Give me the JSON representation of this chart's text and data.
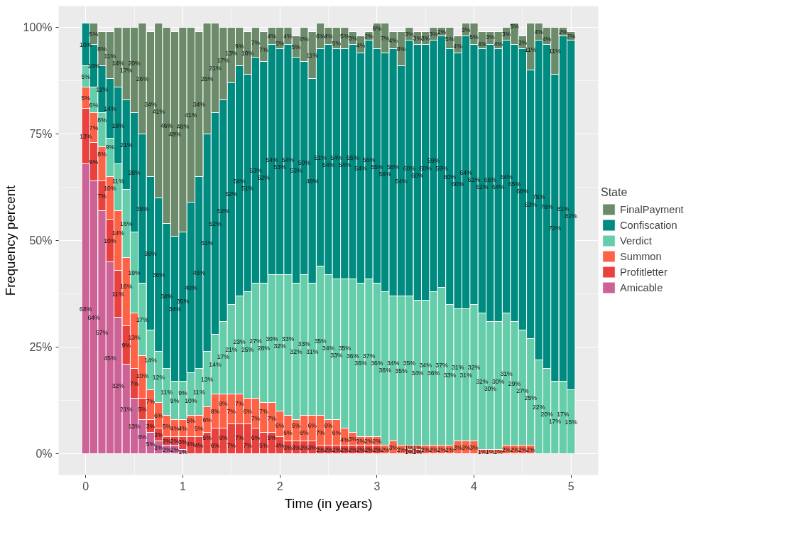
{
  "chart_data": {
    "type": "bar",
    "stacked": true,
    "xlabel": "Time (in years)",
    "ylabel": "Frequency percent",
    "legend_title": "State",
    "legend": "right",
    "grid": true,
    "xlim": [
      -0.28,
      5.28
    ],
    "ylim": [
      -5,
      105
    ],
    "xticks": [
      0,
      1,
      2,
      3,
      4,
      5
    ],
    "yticks": [
      {
        "value": 0,
        "label": "0%"
      },
      {
        "value": 25,
        "label": "25%"
      },
      {
        "value": 50,
        "label": "50%"
      },
      {
        "value": 75,
        "label": "75%"
      },
      {
        "value": 100,
        "label": "100%"
      }
    ],
    "x": [
      0,
      0.083,
      0.167,
      0.25,
      0.333,
      0.417,
      0.5,
      0.583,
      0.667,
      0.75,
      0.833,
      0.917,
      1,
      1.083,
      1.167,
      1.25,
      1.333,
      1.417,
      1.5,
      1.583,
      1.667,
      1.75,
      1.833,
      1.917,
      2,
      2.083,
      2.167,
      2.25,
      2.333,
      2.417,
      2.5,
      2.583,
      2.667,
      2.75,
      2.833,
      2.917,
      3,
      3.083,
      3.167,
      3.25,
      3.333,
      3.417,
      3.5,
      3.583,
      3.667,
      3.75,
      3.833,
      3.917,
      4,
      4.083,
      4.167,
      4.25,
      4.333,
      4.417,
      4.5,
      4.583,
      4.667,
      4.75,
      4.833,
      4.917,
      5
    ],
    "series": [
      {
        "name": "Amicable",
        "color": "#cc6296",
        "values": [
          68,
          64,
          57,
          45,
          32,
          21,
          13,
          8,
          5,
          3,
          2,
          2,
          1,
          null,
          null,
          null,
          null,
          null,
          null,
          null,
          null,
          null,
          null,
          null,
          null,
          null,
          null,
          null,
          null,
          null,
          null,
          null,
          null,
          null,
          null,
          null,
          null,
          null,
          null,
          null,
          null,
          null,
          null,
          null,
          null,
          null,
          null,
          null,
          null,
          null,
          null,
          null,
          null,
          null,
          null,
          null,
          null,
          null,
          null,
          null,
          null
        ],
        "value_labels": [
          "68%",
          "64%",
          "57%",
          "45%",
          "32%",
          "21%",
          "13%",
          "8%",
          "5%",
          "3%",
          "2%",
          "2%",
          "1%",
          null,
          null,
          null,
          null,
          null,
          null,
          null,
          null,
          null,
          null,
          null,
          null,
          null,
          null,
          null,
          null,
          null,
          null,
          null,
          null,
          null,
          null,
          null,
          null,
          null,
          null,
          null,
          null,
          null,
          null,
          null,
          null,
          null,
          null,
          null,
          null,
          null,
          null,
          null,
          null,
          null,
          null,
          null,
          null,
          null,
          null,
          null,
          null
        ]
      },
      {
        "name": "Profitletter",
        "color": "#e8413e",
        "values": [
          13,
          9,
          7,
          10,
          11,
          9,
          7,
          5,
          3,
          3,
          2,
          2,
          3,
          4,
          4,
          5,
          6,
          6,
          7,
          7,
          7,
          6,
          5,
          5,
          4,
          3,
          3,
          3,
          3,
          2,
          2,
          2,
          2,
          2,
          2,
          2,
          2,
          null,
          null,
          null,
          1,
          1,
          null,
          null,
          null,
          null,
          null,
          null,
          null,
          null,
          null,
          null,
          null,
          null,
          null,
          null,
          null,
          null,
          null,
          null,
          null
        ],
        "value_labels": [
          "13%",
          "9%",
          "7%",
          "10%",
          "11%",
          "9%",
          "7%",
          "5%",
          "3%",
          "3%",
          "2%",
          "2%",
          "3%",
          "4%",
          "4%",
          "5%",
          "6%",
          "6%",
          "7%",
          "7%",
          "7%",
          "6%",
          "5%",
          "5%",
          "4%",
          "3%",
          "3%",
          "3%",
          "3%",
          "2%",
          "2%",
          "2%",
          "2%",
          "2%",
          "2%",
          "2%",
          "2%",
          null,
          null,
          null,
          "1%",
          "1%",
          null,
          null,
          null,
          null,
          null,
          null,
          null,
          null,
          null,
          null,
          null,
          null,
          null,
          null,
          null,
          null,
          null,
          null,
          null
        ]
      },
      {
        "name": "Summon",
        "color": "#ff6347",
        "values": [
          5,
          7,
          8,
          10,
          14,
          16,
          13,
          10,
          7,
          6,
          5,
          4,
          4,
          5,
          5,
          6,
          8,
          8,
          7,
          7,
          6,
          7,
          7,
          7,
          6,
          6,
          5,
          6,
          6,
          7,
          6,
          6,
          4,
          3,
          2,
          2,
          2,
          2,
          3,
          2,
          1,
          1,
          2,
          2,
          2,
          2,
          3,
          3,
          3,
          1,
          1,
          1,
          2,
          2,
          2,
          2,
          null,
          null,
          null,
          null,
          null
        ],
        "value_labels": [
          "5%",
          "7%",
          "8%",
          "10%",
          "14%",
          "16%",
          "13%",
          "10%",
          "7%",
          "6%",
          "5%",
          "4%",
          "4%",
          "5%",
          "5%",
          "6%",
          "8%",
          "8%",
          "7%",
          "7%",
          "6%",
          "7%",
          "7%",
          "7%",
          "6%",
          "6%",
          "5%",
          "6%",
          "6%",
          "7%",
          "6%",
          "6%",
          "4%",
          "3%",
          "2%",
          "2%",
          "2%",
          "2%",
          "3%",
          "2%",
          "1%",
          "1%",
          "2%",
          "2%",
          "2%",
          "2%",
          "3%",
          "3%",
          "3%",
          "1%",
          "1%",
          "1%",
          "2%",
          "2%",
          "2%",
          "2%",
          null,
          null,
          null,
          null,
          null
        ]
      },
      {
        "name": "Verdict",
        "color": "#66cdaa",
        "values": [
          5,
          6,
          8,
          9,
          11,
          16,
          19,
          17,
          14,
          12,
          11,
          9,
          9,
          10,
          11,
          13,
          14,
          17,
          21,
          23,
          25,
          27,
          28,
          30,
          32,
          33,
          32,
          33,
          31,
          35,
          34,
          33,
          35,
          36,
          36,
          37,
          36,
          36,
          34,
          35,
          35,
          34,
          34,
          36,
          37,
          33,
          31,
          31,
          32,
          32,
          30,
          30,
          31,
          29,
          27,
          25,
          22,
          20,
          17,
          17,
          15
        ],
        "value_labels": [
          "5%",
          "6%",
          "8%",
          "9%",
          "11%",
          "16%",
          "19%",
          "17%",
          "14%",
          "12%",
          "11%",
          "9%",
          "9%",
          "10%",
          "11%",
          "13%",
          "14%",
          "17%",
          "21%",
          "23%",
          "25%",
          "27%",
          "28%",
          "30%",
          "32%",
          "33%",
          "32%",
          "33%",
          "31%",
          "35%",
          "34%",
          "33%",
          "35%",
          "36%",
          "36%",
          "37%",
          "36%",
          "36%",
          "34%",
          "35%",
          "35%",
          "34%",
          "34%",
          "36%",
          "37%",
          "33%",
          "31%",
          "31%",
          "32%",
          "32%",
          "30%",
          "30%",
          "31%",
          "29%",
          "27%",
          "25%",
          "22%",
          "20%",
          "17%",
          "17%",
          "15%"
        ]
      },
      {
        "name": "Confiscation",
        "color": "#008b80",
        "values": [
          10,
          10,
          11,
          14,
          18,
          21,
          28,
          35,
          36,
          36,
          34,
          34,
          35,
          40,
          45,
          51,
          52,
          52,
          52,
          54,
          51,
          53,
          52,
          54,
          53,
          54,
          53,
          50,
          48,
          51,
          54,
          54,
          54,
          55,
          54,
          56,
          55,
          56,
          58,
          54,
          60,
          60,
          60,
          59,
          59,
          60,
          60,
          64,
          61,
          62,
          65,
          64,
          64,
          65,
          66,
          63,
          75,
          76,
          72,
          81,
          82
        ],
        "value_labels": [
          "10%",
          "10%",
          "11%",
          "14%",
          "18%",
          "21%",
          "28%",
          "35%",
          "36%",
          "36%",
          "34%",
          "34%",
          "35%",
          "40%",
          "45%",
          "51%",
          "52%",
          "52%",
          "52%",
          "54%",
          "51%",
          "53%",
          "52%",
          "54%",
          "53%",
          "54%",
          "53%",
          "50%",
          "48%",
          "51%",
          "54%",
          "54%",
          "54%",
          "55%",
          "54%",
          "56%",
          "55%",
          "56%",
          "58%",
          "54%",
          "60%",
          "60%",
          "60%",
          "59%",
          "59%",
          "60%",
          "60%",
          "64%",
          "61%",
          "62%",
          "65%",
          "64%",
          "64%",
          "65%",
          "66%",
          "63%",
          "75%",
          "76%",
          "72%",
          "81%",
          "82%"
        ]
      },
      {
        "name": "FinalPayment",
        "color": "#6b8b6b",
        "values": [
          null,
          5,
          8,
          11,
          14,
          17,
          20,
          26,
          34,
          41,
          46,
          48,
          48,
          41,
          34,
          26,
          21,
          17,
          13,
          9,
          10,
          7,
          7,
          4,
          5,
          4,
          5,
          8,
          11,
          6,
          4,
          5,
          5,
          3,
          4,
          2,
          6,
          7,
          4,
          8,
          3,
          3,
          3,
          3,
          2,
          5,
          4,
          3,
          5,
          4,
          3,
          4,
          3,
          5,
          3,
          11,
          4,
          4,
          11,
          2,
          2
        ],
        "value_labels": [
          null,
          "5%",
          "8%",
          "11%",
          "14%",
          "17%",
          "20%",
          "26%",
          "34%",
          "41%",
          "46%",
          "48%",
          "48%",
          "41%",
          "34%",
          "26%",
          "21%",
          "17%",
          "13%",
          "9%",
          "10%",
          "7%",
          "7%",
          "4%",
          "5%",
          "4%",
          "5%",
          "8%",
          "11%",
          "6%",
          "4%",
          "5%",
          "5%",
          "3%",
          "4%",
          "2%",
          "6%",
          "7%",
          "4%",
          "8%",
          "3%",
          "3%",
          "3%",
          "3%",
          "2%",
          "5%",
          "4%",
          "3%",
          "5%",
          "4%",
          "3%",
          "4%",
          "3%",
          "5%",
          "3%",
          "11%",
          "4%",
          "4%",
          "11%",
          "2%",
          "2%"
        ]
      }
    ]
  }
}
